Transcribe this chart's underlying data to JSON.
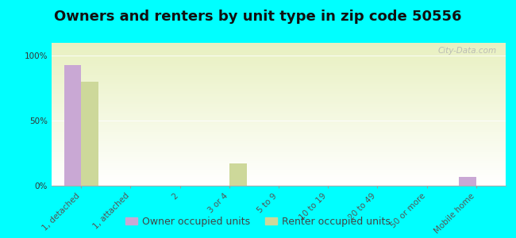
{
  "title": "Owners and renters by unit type in zip code 50556",
  "categories": [
    "1, detached",
    "1, attached",
    "2",
    "3 or 4",
    "5 to 9",
    "10 to 19",
    "20 to 49",
    "50 or more",
    "Mobile home"
  ],
  "owner_values": [
    93,
    0,
    0,
    0,
    0,
    0,
    0,
    0,
    7
  ],
  "renter_values": [
    80,
    0,
    0,
    17,
    0,
    0,
    0,
    0,
    0
  ],
  "owner_color": "#c9a8d4",
  "renter_color": "#cdd89a",
  "background_color": "#00ffff",
  "plot_bg_color": "#e8f0c0",
  "ylabel_ticks": [
    "0%",
    "50%",
    "100%"
  ],
  "ytick_vals": [
    0,
    50,
    100
  ],
  "ylim": [
    0,
    110
  ],
  "bar_width": 0.35,
  "legend_owner": "Owner occupied units",
  "legend_renter": "Renter occupied units",
  "watermark": "City-Data.com",
  "title_fontsize": 13,
  "tick_fontsize": 7.5,
  "legend_fontsize": 9
}
